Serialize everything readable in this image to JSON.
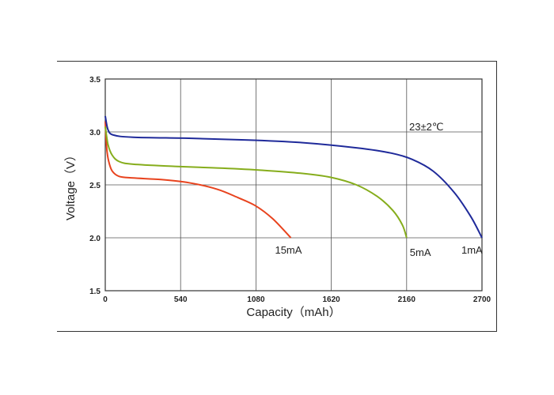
{
  "chart_data": {
    "type": "line",
    "title": "",
    "xlabel": "Capacity（mAh）",
    "ylabel": "Voltage（V）",
    "xlim": [
      0,
      2700
    ],
    "ylim": [
      1.5,
      3.5
    ],
    "xticks": [
      "0",
      "540",
      "1080",
      "1620",
      "2160",
      "2700"
    ],
    "yticks": [
      "1.5",
      "2.0",
      "2.5",
      "3.0",
      "3.5"
    ],
    "grid": true,
    "annotation": "23±2℃",
    "series": [
      {
        "name": "15mA",
        "color": "#e8431e",
        "points": [
          [
            0,
            3.1
          ],
          [
            10,
            2.85
          ],
          [
            25,
            2.72
          ],
          [
            50,
            2.63
          ],
          [
            100,
            2.58
          ],
          [
            200,
            2.565
          ],
          [
            400,
            2.55
          ],
          [
            600,
            2.52
          ],
          [
            800,
            2.46
          ],
          [
            950,
            2.38
          ],
          [
            1080,
            2.3
          ],
          [
            1200,
            2.18
          ],
          [
            1330,
            2.0
          ]
        ]
      },
      {
        "name": "5mA",
        "color": "#86ad1c",
        "points": [
          [
            0,
            3.05
          ],
          [
            20,
            2.88
          ],
          [
            50,
            2.78
          ],
          [
            100,
            2.72
          ],
          [
            200,
            2.695
          ],
          [
            500,
            2.675
          ],
          [
            800,
            2.66
          ],
          [
            1100,
            2.64
          ],
          [
            1400,
            2.61
          ],
          [
            1620,
            2.57
          ],
          [
            1800,
            2.5
          ],
          [
            1950,
            2.39
          ],
          [
            2060,
            2.26
          ],
          [
            2130,
            2.12
          ],
          [
            2160,
            2.0
          ]
        ]
      },
      {
        "name": "1mA",
        "color": "#1f2a9a",
        "points": [
          [
            0,
            3.15
          ],
          [
            20,
            3.02
          ],
          [
            60,
            2.97
          ],
          [
            200,
            2.95
          ],
          [
            600,
            2.94
          ],
          [
            1000,
            2.925
          ],
          [
            1400,
            2.9
          ],
          [
            1800,
            2.85
          ],
          [
            2050,
            2.8
          ],
          [
            2200,
            2.74
          ],
          [
            2350,
            2.63
          ],
          [
            2500,
            2.43
          ],
          [
            2620,
            2.2
          ],
          [
            2700,
            2.0
          ]
        ]
      }
    ]
  }
}
